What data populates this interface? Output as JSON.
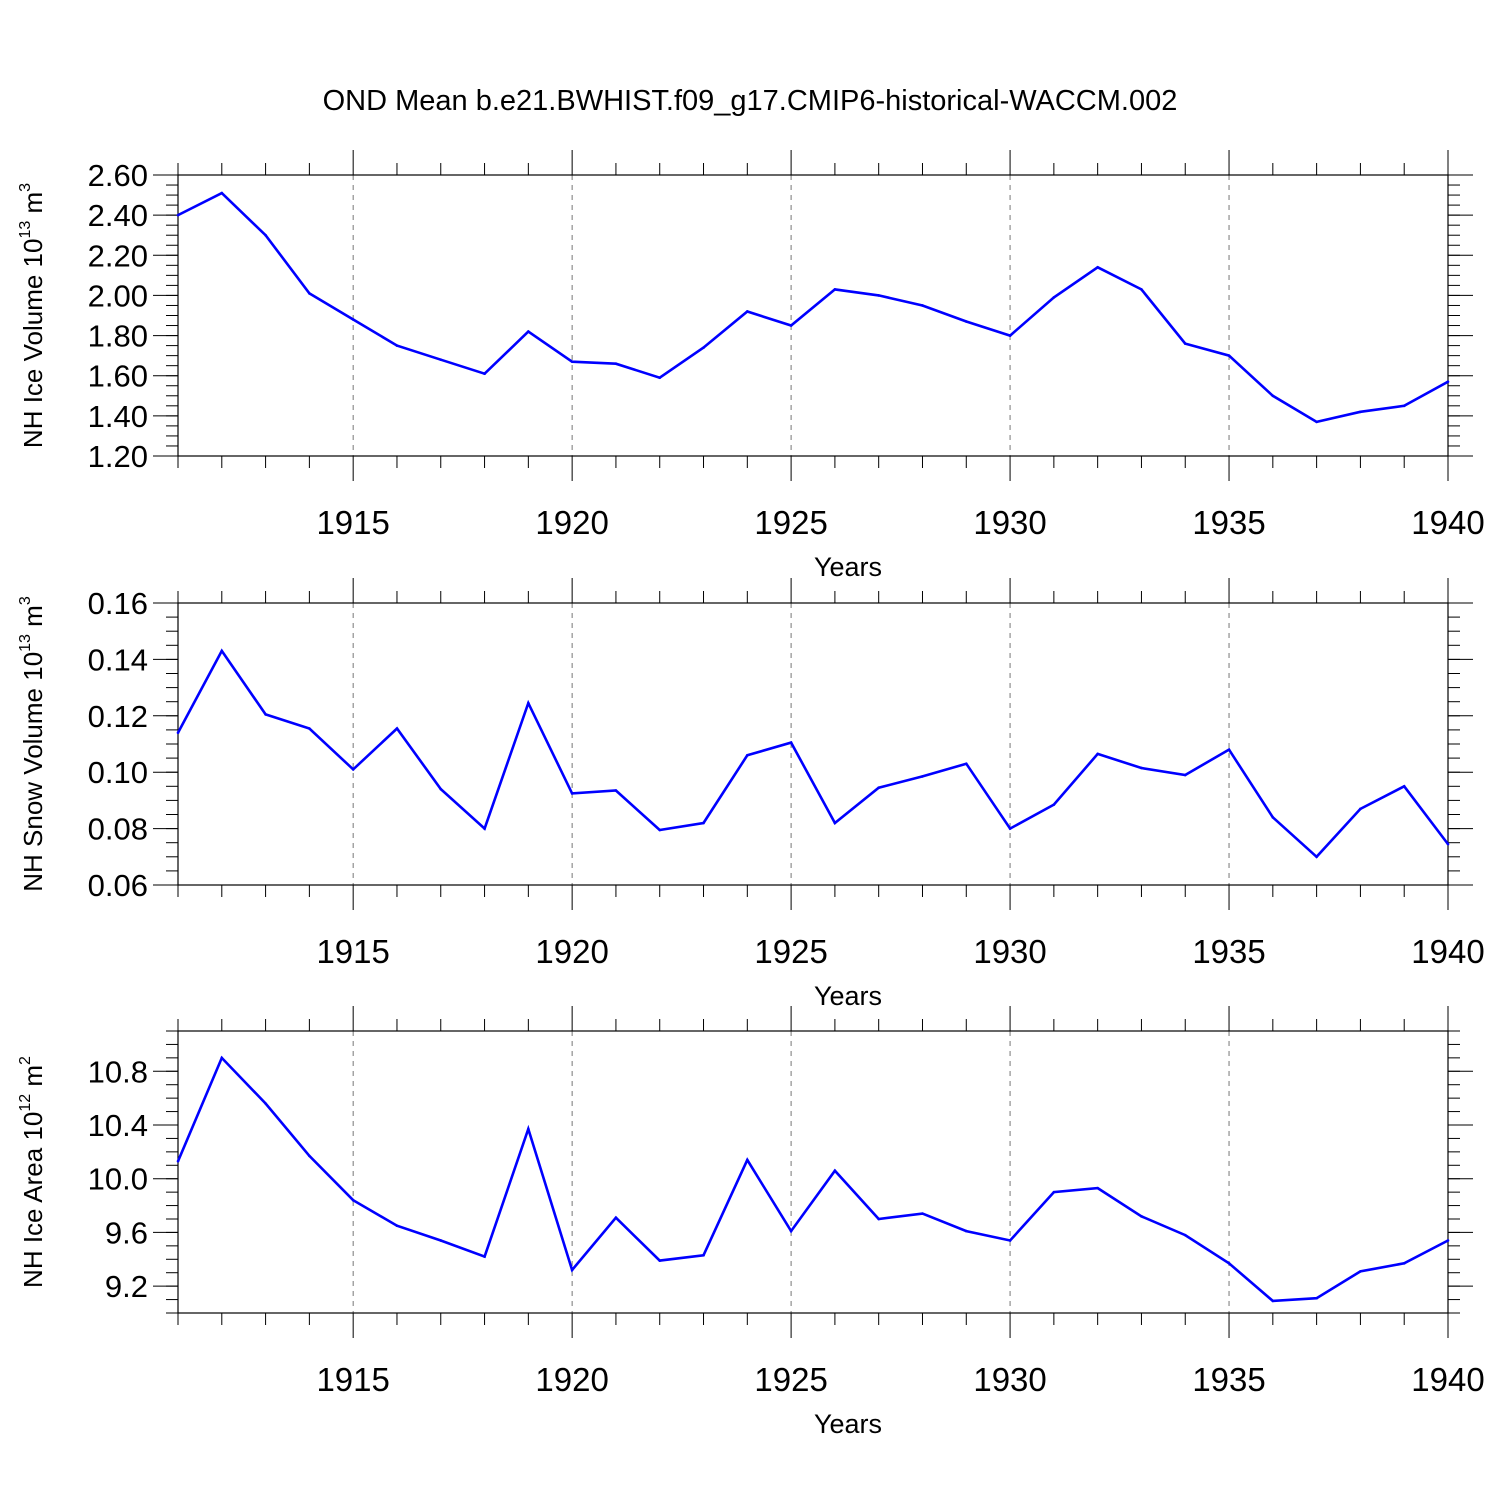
{
  "figure": {
    "title": "OND Mean b.e21.BWHIST.f09_g17.CMIP6-historical-WACCM.002"
  },
  "chart_data": [
    {
      "type": "line",
      "title": "OND Mean b.e21.BWHIST.f09_g17.CMIP6-historical-WACCM.002",
      "xlabel": "Years",
      "ylabel": {
        "pre": "NH Ice Volume 10",
        "exp": "13",
        "mid": " m",
        "unit_exp": "3"
      },
      "xlim": [
        1911,
        1940
      ],
      "ylim": [
        1.2,
        2.6
      ],
      "x_ticks": [
        "1915",
        "1920",
        "1925",
        "1930",
        "1935",
        "1940"
      ],
      "y_ticks": [
        "1.20",
        "1.40",
        "1.60",
        "1.80",
        "2.00",
        "2.20",
        "2.40",
        "2.60"
      ],
      "grid": "dashed vertical at x ticks",
      "line_color": "#0000ff",
      "series": [
        {
          "name": "NH Ice Volume",
          "x": [
            1911,
            1912,
            1913,
            1914,
            1915,
            1916,
            1917,
            1918,
            1919,
            1920,
            1921,
            1922,
            1923,
            1924,
            1925,
            1926,
            1927,
            1928,
            1929,
            1930,
            1931,
            1932,
            1933,
            1934,
            1935,
            1936,
            1937,
            1938,
            1939,
            1940
          ],
          "values": [
            2.4,
            2.51,
            2.3,
            2.01,
            1.88,
            1.75,
            1.68,
            1.61,
            1.82,
            1.67,
            1.66,
            1.59,
            1.74,
            1.92,
            1.85,
            2.03,
            2.0,
            1.95,
            1.87,
            1.8,
            1.99,
            2.14,
            2.03,
            1.76,
            1.7,
            1.5,
            1.37,
            1.42,
            1.45,
            1.57
          ]
        }
      ]
    },
    {
      "type": "line",
      "xlabel": "Years",
      "ylabel": {
        "pre": "NH Snow Volume 10",
        "exp": "13",
        "mid": " m",
        "unit_exp": "3"
      },
      "xlim": [
        1911,
        1940
      ],
      "ylim": [
        0.06,
        0.16
      ],
      "x_ticks": [
        "1915",
        "1920",
        "1925",
        "1930",
        "1935",
        "1940"
      ],
      "y_ticks": [
        "0.06",
        "0.08",
        "0.10",
        "0.12",
        "0.14",
        "0.16"
      ],
      "grid": "dashed vertical at x ticks",
      "line_color": "#0000ff",
      "series": [
        {
          "name": "NH Snow Volume",
          "x": [
            1911,
            1912,
            1913,
            1914,
            1915,
            1916,
            1917,
            1918,
            1919,
            1920,
            1921,
            1922,
            1923,
            1924,
            1925,
            1926,
            1927,
            1928,
            1929,
            1930,
            1931,
            1932,
            1933,
            1934,
            1935,
            1936,
            1937,
            1938,
            1939,
            1940
          ],
          "values": [
            0.114,
            0.143,
            0.1205,
            0.1155,
            0.101,
            0.1155,
            0.094,
            0.08,
            0.1245,
            0.0925,
            0.0935,
            0.0795,
            0.082,
            0.106,
            0.1105,
            0.082,
            0.0945,
            0.0985,
            0.103,
            0.08,
            0.0885,
            0.1065,
            0.1015,
            0.099,
            0.108,
            0.084,
            0.07,
            0.087,
            0.095,
            0.0745
          ]
        }
      ]
    },
    {
      "type": "line",
      "xlabel": "Years",
      "ylabel": {
        "pre": "NH Ice Area 10",
        "exp": "12",
        "mid": " m",
        "unit_exp": "2"
      },
      "xlim": [
        1911,
        1940
      ],
      "ylim": [
        9.0,
        11.1
      ],
      "x_ticks": [
        "1915",
        "1920",
        "1925",
        "1930",
        "1935",
        "1940"
      ],
      "y_ticks": [
        "9.2",
        "9.6",
        "10.0",
        "10.4",
        "10.8"
      ],
      "grid": "dashed vertical at x ticks",
      "line_color": "#0000ff",
      "series": [
        {
          "name": "NH Ice Area",
          "x": [
            1911,
            1912,
            1913,
            1914,
            1915,
            1916,
            1917,
            1918,
            1919,
            1920,
            1921,
            1922,
            1923,
            1924,
            1925,
            1926,
            1927,
            1928,
            1929,
            1930,
            1931,
            1932,
            1933,
            1934,
            1935,
            1936,
            1937,
            1938,
            1939,
            1940
          ],
          "values": [
            10.13,
            10.9,
            10.56,
            10.17,
            9.84,
            9.65,
            9.54,
            9.42,
            10.37,
            9.32,
            9.71,
            9.39,
            9.43,
            10.14,
            9.61,
            10.06,
            9.7,
            9.74,
            9.61,
            9.54,
            9.9,
            9.93,
            9.72,
            9.58,
            9.37,
            9.09,
            9.11,
            9.31,
            9.37,
            9.54
          ]
        }
      ]
    }
  ]
}
